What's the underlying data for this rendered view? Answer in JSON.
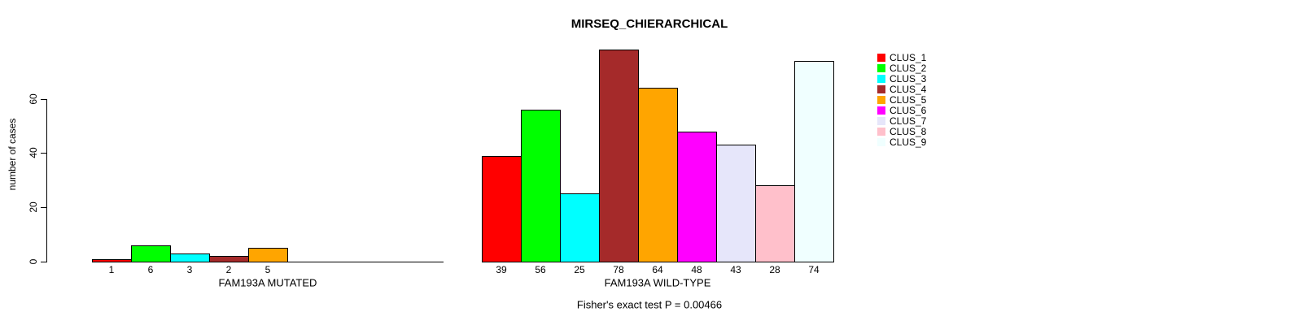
{
  "chart_data": {
    "type": "bar",
    "title": "MIRSEQ_CHIERARCHICAL",
    "ylabel": "number of cases",
    "annotation": "Fisher's exact test P = 0.00466",
    "yticks": [
      0,
      20,
      40,
      60
    ],
    "ylim": [
      0,
      79
    ],
    "grid": false,
    "legend_position": "right-top",
    "legend": [
      {
        "label": "CLUS_1",
        "color": "#FF0000"
      },
      {
        "label": "CLUS_2",
        "color": "#00FF00"
      },
      {
        "label": "CLUS_3",
        "color": "#00FFFF"
      },
      {
        "label": "CLUS_4",
        "color": "#A52A2A"
      },
      {
        "label": "CLUS_5",
        "color": "#FFA500"
      },
      {
        "label": "CLUS_6",
        "color": "#FF00FF"
      },
      {
        "label": "CLUS_7",
        "color": "#E6E6FA"
      },
      {
        "label": "CLUS_8",
        "color": "#FFC0CB"
      },
      {
        "label": "CLUS_9",
        "color": "#F0FFFF"
      }
    ],
    "groups": [
      {
        "label": "FAM193A MUTATED",
        "values": [
          1,
          6,
          3,
          2,
          5,
          0,
          0,
          0,
          0
        ],
        "bar_labels": [
          "1",
          "6",
          "3",
          "2",
          "5",
          "",
          "",
          "",
          ""
        ]
      },
      {
        "label": "FAM193A WILD-TYPE",
        "values": [
          39,
          56,
          25,
          78,
          64,
          48,
          43,
          28,
          74
        ],
        "bar_labels": [
          "39",
          "56",
          "25",
          "78",
          "64",
          "48",
          "43",
          "28",
          "74"
        ]
      }
    ]
  }
}
